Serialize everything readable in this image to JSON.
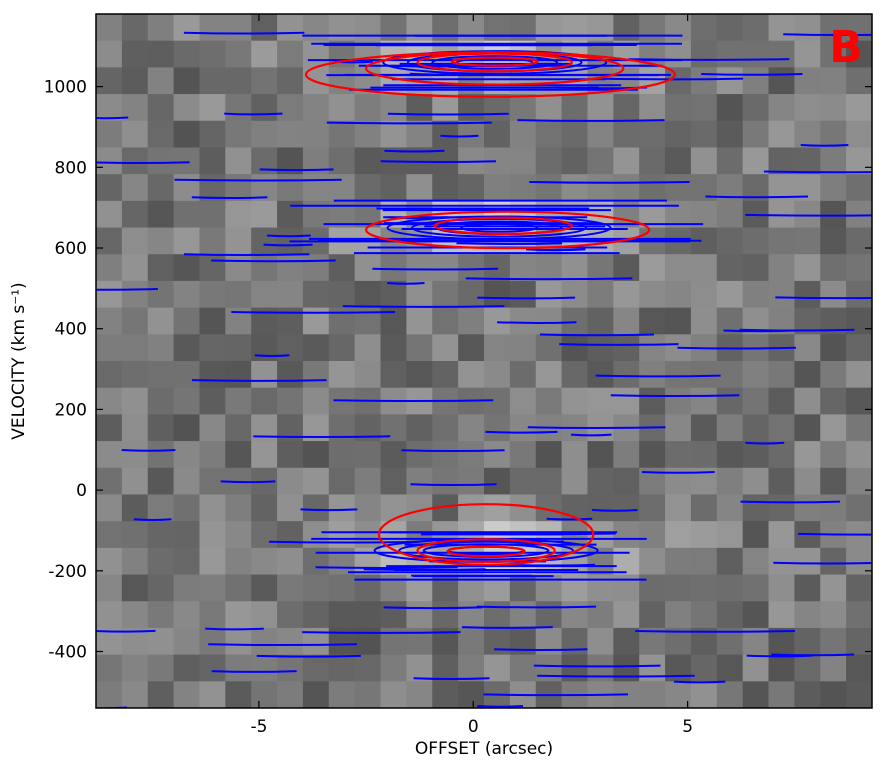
{
  "chart_data": {
    "type": "heatmap",
    "panel_label": "B",
    "xlabel": "OFFSET (arcsec)",
    "ylabel": "VELOCITY (km s⁻¹)",
    "xlim": [
      -8.8,
      9.3
    ],
    "ylim": [
      -540,
      1180
    ],
    "x_ticks": [
      {
        "value": -5,
        "label": "-5"
      },
      {
        "value": 0,
        "label": "0"
      },
      {
        "value": 5,
        "label": "5"
      }
    ],
    "y_ticks": [
      {
        "value": -400,
        "label": "-400"
      },
      {
        "value": -200,
        "label": "-200"
      },
      {
        "value": 0,
        "label": "0"
      },
      {
        "value": 200,
        "label": "200"
      },
      {
        "value": 400,
        "label": "400"
      },
      {
        "value": 600,
        "label": "600"
      },
      {
        "value": 800,
        "label": "800"
      },
      {
        "value": 1000,
        "label": "1000"
      }
    ],
    "grid": false,
    "colormap": "grayscale",
    "colors": {
      "blue_contours": "#0000ff",
      "red_contours": "#ff0000",
      "panel_label": "#ff0000"
    },
    "emission_features": [
      {
        "name": "upper",
        "center_offset": 0.5,
        "center_velocity": 1060,
        "red_contours": [
          {
            "half_width": 4.3,
            "half_height": 55,
            "offset": 0.4,
            "velocity": 1030
          },
          {
            "half_width": 3.0,
            "half_height": 40,
            "offset": 0.5,
            "velocity": 1045
          },
          {
            "half_width": 1.8,
            "half_height": 22,
            "offset": 0.5,
            "velocity": 1060
          },
          {
            "half_width": 1.0,
            "half_height": 10,
            "offset": 0.5,
            "velocity": 1062
          }
        ]
      },
      {
        "name": "middle",
        "center_offset": 0.6,
        "center_velocity": 650,
        "red_contours": [
          {
            "half_width": 3.3,
            "half_height": 45,
            "offset": 0.8,
            "velocity": 645
          },
          {
            "half_width": 1.6,
            "half_height": 20,
            "offset": 0.7,
            "velocity": 655
          }
        ]
      },
      {
        "name": "lower",
        "center_offset": 0.3,
        "center_velocity": -150,
        "red_contours": [
          {
            "half_width": 2.5,
            "half_height": 75,
            "offset": 0.3,
            "velocity": -110
          },
          {
            "half_width": 1.6,
            "half_height": 28,
            "offset": 0.3,
            "velocity": -150
          },
          {
            "half_width": 0.9,
            "half_height": 12,
            "offset": 0.3,
            "velocity": -152
          }
        ]
      }
    ]
  }
}
